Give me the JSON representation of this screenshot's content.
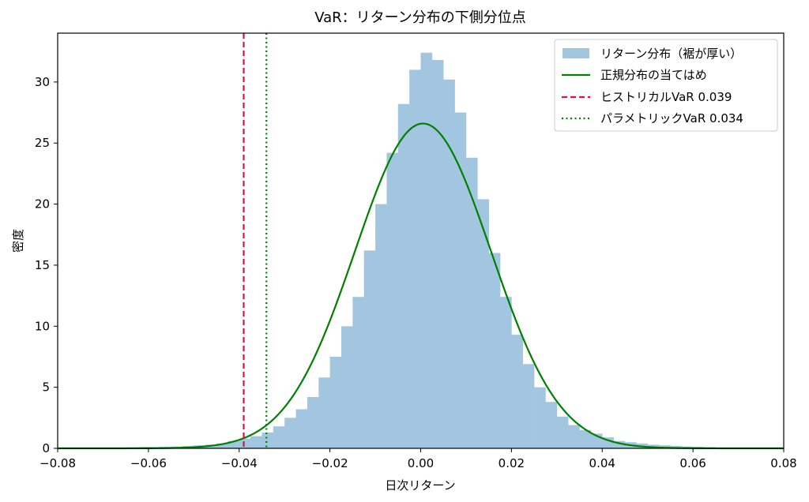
{
  "chart_data": {
    "type": "bar",
    "title": "VaR：リターン分布の下側分位点",
    "xlabel": "日次リターン",
    "ylabel": "密度",
    "xlim": [
      -0.08,
      0.08
    ],
    "ylim": [
      0,
      34
    ],
    "xticks": [
      -0.08,
      -0.06,
      -0.04,
      -0.02,
      0.0,
      0.02,
      0.04,
      0.06,
      0.08
    ],
    "xtick_labels": [
      "−0.08",
      "−0.06",
      "−0.04",
      "−0.02",
      "0.00",
      "0.02",
      "0.04",
      "0.06",
      "0.08"
    ],
    "yticks": [
      0,
      5,
      10,
      15,
      20,
      25,
      30
    ],
    "ytick_labels": [
      "0",
      "5",
      "10",
      "15",
      "20",
      "25",
      "30"
    ],
    "grid": false,
    "legend_position": "top-right",
    "histogram": {
      "name": "リターン分布（裾が厚い）",
      "color": "#a3c6e0",
      "bins": [
        {
          "x0": -0.0825,
          "x1": -0.08,
          "y": 0.05
        },
        {
          "x0": -0.08,
          "x1": -0.0775,
          "y": 0.05
        },
        {
          "x0": -0.0775,
          "x1": -0.075,
          "y": 0.05
        },
        {
          "x0": -0.075,
          "x1": -0.0725,
          "y": 0.05
        },
        {
          "x0": -0.0725,
          "x1": -0.07,
          "y": 0.05
        },
        {
          "x0": -0.07,
          "x1": -0.0675,
          "y": 0.05
        },
        {
          "x0": -0.0675,
          "x1": -0.065,
          "y": 0.05
        },
        {
          "x0": -0.065,
          "x1": -0.0625,
          "y": 0.08
        },
        {
          "x0": -0.0625,
          "x1": -0.06,
          "y": 0.1
        },
        {
          "x0": -0.06,
          "x1": -0.0575,
          "y": 0.1
        },
        {
          "x0": -0.0575,
          "x1": -0.055,
          "y": 0.12
        },
        {
          "x0": -0.055,
          "x1": -0.0525,
          "y": 0.15
        },
        {
          "x0": -0.0525,
          "x1": -0.05,
          "y": 0.2
        },
        {
          "x0": -0.05,
          "x1": -0.0475,
          "y": 0.25
        },
        {
          "x0": -0.0475,
          "x1": -0.045,
          "y": 0.3
        },
        {
          "x0": -0.045,
          "x1": -0.0425,
          "y": 0.4
        },
        {
          "x0": -0.0425,
          "x1": -0.04,
          "y": 0.6
        },
        {
          "x0": -0.04,
          "x1": -0.0375,
          "y": 0.8
        },
        {
          "x0": -0.0375,
          "x1": -0.035,
          "y": 1.0
        },
        {
          "x0": -0.035,
          "x1": -0.0325,
          "y": 1.3
        },
        {
          "x0": -0.0325,
          "x1": -0.03,
          "y": 1.8
        },
        {
          "x0": -0.03,
          "x1": -0.0275,
          "y": 2.5
        },
        {
          "x0": -0.0275,
          "x1": -0.025,
          "y": 3.2
        },
        {
          "x0": -0.025,
          "x1": -0.0225,
          "y": 4.2
        },
        {
          "x0": -0.0225,
          "x1": -0.02,
          "y": 5.8
        },
        {
          "x0": -0.02,
          "x1": -0.0175,
          "y": 7.5
        },
        {
          "x0": -0.0175,
          "x1": -0.015,
          "y": 10.0
        },
        {
          "x0": -0.015,
          "x1": -0.0125,
          "y": 12.4
        },
        {
          "x0": -0.0125,
          "x1": -0.01,
          "y": 16.2
        },
        {
          "x0": -0.01,
          "x1": -0.0075,
          "y": 20.0
        },
        {
          "x0": -0.0075,
          "x1": -0.005,
          "y": 24.2
        },
        {
          "x0": -0.005,
          "x1": -0.0025,
          "y": 28.2
        },
        {
          "x0": -0.0025,
          "x1": 0.0,
          "y": 31.0
        },
        {
          "x0": 0.0,
          "x1": 0.0025,
          "y": 32.4
        },
        {
          "x0": 0.0025,
          "x1": 0.005,
          "y": 31.8
        },
        {
          "x0": 0.005,
          "x1": 0.0075,
          "y": 30.2
        },
        {
          "x0": 0.0075,
          "x1": 0.01,
          "y": 27.5
        },
        {
          "x0": 0.01,
          "x1": 0.0125,
          "y": 23.8
        },
        {
          "x0": 0.0125,
          "x1": 0.015,
          "y": 20.4
        },
        {
          "x0": 0.015,
          "x1": 0.0175,
          "y": 16.0
        },
        {
          "x0": 0.0175,
          "x1": 0.02,
          "y": 12.4
        },
        {
          "x0": 0.02,
          "x1": 0.0225,
          "y": 9.3
        },
        {
          "x0": 0.0225,
          "x1": 0.025,
          "y": 6.9
        },
        {
          "x0": 0.025,
          "x1": 0.0275,
          "y": 5.0
        },
        {
          "x0": 0.0275,
          "x1": 0.03,
          "y": 3.8
        },
        {
          "x0": 0.03,
          "x1": 0.0325,
          "y": 2.6
        },
        {
          "x0": 0.0325,
          "x1": 0.035,
          "y": 1.9
        },
        {
          "x0": 0.035,
          "x1": 0.0375,
          "y": 1.5
        },
        {
          "x0": 0.0375,
          "x1": 0.04,
          "y": 1.2
        },
        {
          "x0": 0.04,
          "x1": 0.0425,
          "y": 0.9
        },
        {
          "x0": 0.0425,
          "x1": 0.045,
          "y": 0.6
        },
        {
          "x0": 0.045,
          "x1": 0.0475,
          "y": 0.5
        },
        {
          "x0": 0.0475,
          "x1": 0.05,
          "y": 0.4
        },
        {
          "x0": 0.05,
          "x1": 0.0525,
          "y": 0.3
        },
        {
          "x0": 0.0525,
          "x1": 0.055,
          "y": 0.25
        },
        {
          "x0": 0.055,
          "x1": 0.0575,
          "y": 0.2
        },
        {
          "x0": 0.0575,
          "x1": 0.06,
          "y": 0.15
        },
        {
          "x0": 0.06,
          "x1": 0.0625,
          "y": 0.12
        },
        {
          "x0": 0.0625,
          "x1": 0.065,
          "y": 0.1
        },
        {
          "x0": 0.065,
          "x1": 0.0675,
          "y": 0.06
        },
        {
          "x0": 0.0675,
          "x1": 0.07,
          "y": 0.05
        },
        {
          "x0": 0.07,
          "x1": 0.0725,
          "y": 0.05
        },
        {
          "x0": 0.0725,
          "x1": 0.075,
          "y": 0.05
        },
        {
          "x0": 0.075,
          "x1": 0.0775,
          "y": 0.05
        },
        {
          "x0": 0.0775,
          "x1": 0.08,
          "y": 0.05
        }
      ]
    },
    "normal_fit": {
      "name": "正規分布の当てはめ",
      "color": "#008000",
      "mean": 0.0005,
      "std": 0.015,
      "peak_density": 26.6
    },
    "vlines": [
      {
        "name": "ヒストリカルVaR 0.039",
        "x": -0.039,
        "color": "#dc143c",
        "style": "dashed"
      },
      {
        "name": "パラメトリックVaR 0.034",
        "x": -0.034,
        "color": "#008000",
        "style": "dotted"
      }
    ]
  }
}
